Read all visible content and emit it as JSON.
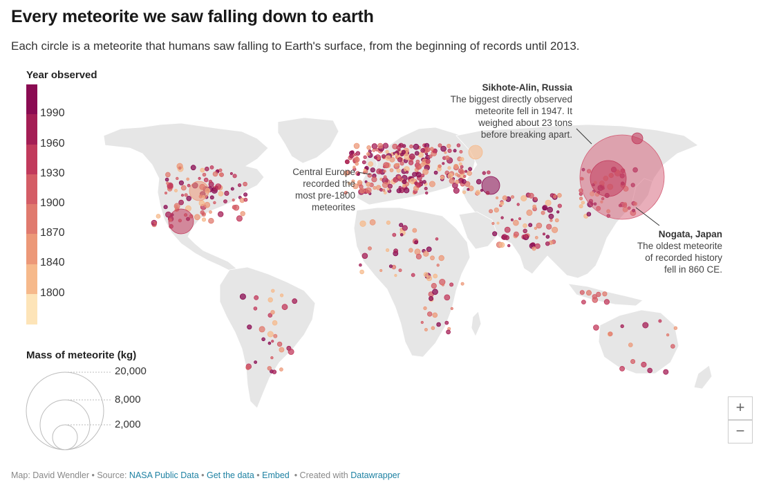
{
  "title": "Every meteorite we saw falling down to earth",
  "subtitle": "Each circle is a meteorite that humans saw falling to Earth's surface, from the beginning of records until 2013.",
  "legend": {
    "year_title": "Year observed",
    "year_labels": [
      "1990",
      "1960",
      "1930",
      "1900",
      "1870",
      "1840",
      "1800"
    ],
    "year_colors": [
      "#8a0b52",
      "#a41e55",
      "#c13a5c",
      "#d45d66",
      "#e07a6e",
      "#ec9878",
      "#f6b98b",
      "#fde4b8"
    ],
    "mass_title": "Mass of meteorite (kg)",
    "mass_labels": [
      "20,000",
      "8,000",
      "2,000"
    ],
    "mass_values": [
      20000,
      8000,
      2000
    ]
  },
  "annotations": {
    "sikhote": {
      "head": "Sikhote-Alin, Russia",
      "lines": [
        "The biggest directly observed",
        "meteorite fell in 1947. It",
        "weighed about 23 tons",
        "before breaking apart."
      ]
    },
    "europe": {
      "lines": [
        "Central Europe",
        "recorded the",
        "most pre-1800",
        "meteorites"
      ]
    },
    "nogata": {
      "head": "Nogata, Japan",
      "lines": [
        "The oldest meteorite",
        "of recorded history",
        "fell in 860 CE."
      ]
    }
  },
  "zoom": {
    "in": "+",
    "out": "−"
  },
  "footer": {
    "map_by": "Map: David Wendler",
    "source_label": "Source:",
    "source_link": "NASA Public Data",
    "get_data": "Get the data",
    "embed": "Embed",
    "created_with": "Created with",
    "datawrapper": "Datawrapper"
  },
  "colors": {
    "land": "#e6e6e6",
    "border": "#ffffff",
    "highlight": "#d45d75"
  }
}
